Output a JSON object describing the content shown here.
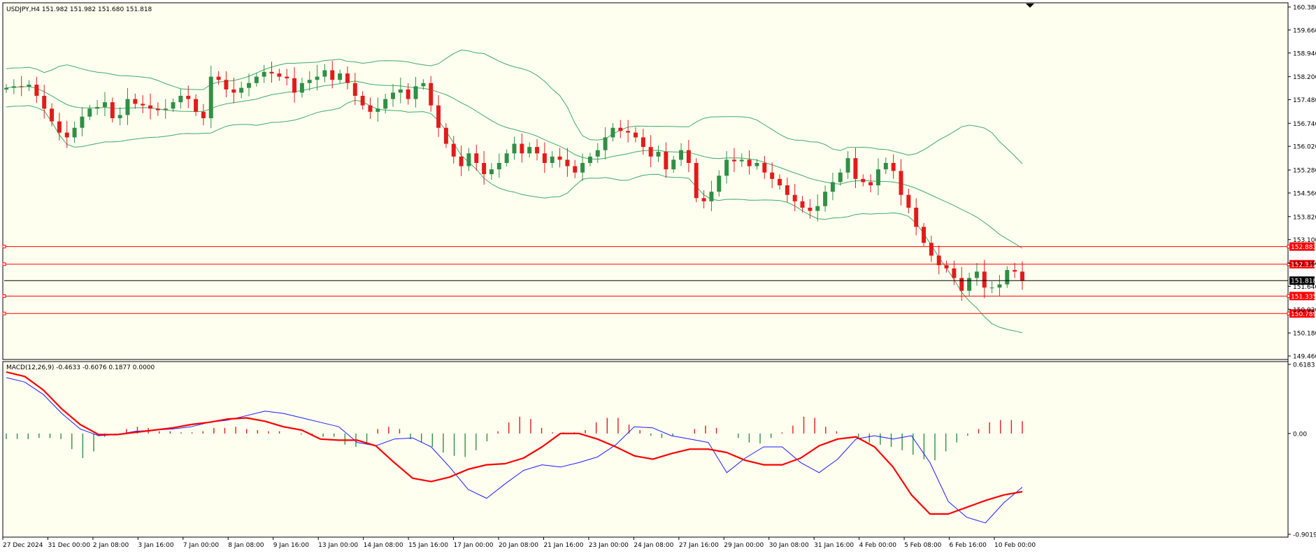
{
  "header": {
    "symbol_line": "USDJPY,H4  151.982 151.982 151.680 151.818",
    "macd_line": "MACD(12,26,9) -0.4633 -0.6076 0.1877 0.0000"
  },
  "colors": {
    "background": "#fffff0",
    "bull": "#2f8f46",
    "bear": "#e21b1b",
    "bands": "#3daa6a",
    "level_line": "#ff0000",
    "macd_main": "#1a1aff",
    "macd_signal": "#ff0000",
    "hist_positive": "#e21b1b",
    "hist_negative": "#2f8f46"
  },
  "chart_data": [
    {
      "type": "candlestick",
      "ylim": [
        149.46,
        160.38
      ],
      "price_ticks": [
        "160.380",
        "159.660",
        "158.940",
        "158.200",
        "157.480",
        "156.740",
        "156.020",
        "155.280",
        "154.560",
        "153.820",
        "153.100",
        "152.360",
        "151.640",
        "150.920",
        "150.180",
        "149.460"
      ],
      "current_price": "151.818",
      "levels": [
        "152.883",
        "152.332",
        "151.335",
        "150.789"
      ],
      "x_labels": [
        "27 Dec 2024",
        "31 Dec 00:00",
        "2 Jan 08:00",
        "3 Jan 16:00",
        "7 Jan 00:00",
        "8 Jan 08:00",
        "9 Jan 16:00",
        "13 Jan 00:00",
        "14 Jan 08:00",
        "15 Jan 16:00",
        "17 Jan 00:00",
        "20 Jan 08:00",
        "21 Jan 16:00",
        "23 Jan 00:00",
        "24 Jan 08:00",
        "27 Jan 16:00",
        "29 Jan 00:00",
        "30 Jan 08:00",
        "31 Jan 16:00",
        "4 Feb 00:00",
        "5 Feb 08:00",
        "6 Feb 16:00",
        "10 Feb 00:00"
      ],
      "close_path": [
        157.85,
        157.9,
        157.88,
        157.95,
        157.6,
        157.2,
        156.8,
        156.45,
        156.3,
        156.6,
        156.95,
        157.2,
        157.25,
        157.4,
        156.9,
        157.0,
        157.5,
        157.35,
        157.3,
        157.2,
        157.15,
        157.2,
        157.4,
        157.6,
        157.5,
        157.1,
        156.9,
        158.2,
        158.1,
        157.8,
        157.7,
        157.85,
        158.0,
        158.2,
        158.35,
        158.3,
        158.2,
        158.15,
        157.7,
        158.0,
        158.1,
        158.2,
        158.4,
        158.1,
        158.3,
        158.0,
        157.6,
        157.3,
        157.1,
        157.2,
        157.5,
        157.7,
        157.8,
        157.5,
        157.9,
        158.0,
        157.3,
        156.6,
        156.1,
        155.7,
        155.4,
        155.8,
        155.5,
        155.15,
        155.3,
        155.5,
        155.8,
        156.1,
        155.8,
        156.0,
        155.8,
        155.5,
        155.7,
        155.6,
        155.4,
        155.2,
        155.5,
        155.7,
        155.9,
        156.3,
        156.6,
        156.5,
        156.45,
        156.3,
        156.0,
        155.7,
        155.85,
        155.3,
        155.6,
        155.9,
        155.5,
        154.4,
        154.3,
        154.6,
        155.1,
        155.6,
        155.55,
        155.6,
        155.4,
        155.5,
        155.2,
        155.0,
        154.8,
        154.5,
        154.3,
        154.1,
        154.0,
        154.15,
        154.6,
        154.9,
        155.2,
        155.65,
        155.0,
        154.9,
        154.8,
        155.3,
        155.5,
        155.25,
        154.5,
        154.1,
        153.5,
        153.0,
        152.6,
        152.3,
        152.2,
        151.9,
        151.5,
        151.9,
        152.1,
        151.6,
        151.6,
        151.7,
        152.15,
        152.1,
        151.82
      ]
    },
    {
      "type": "macd",
      "ylim": [
        -0.9019,
        0.6183
      ],
      "ticks": [
        "0.6183",
        "0.00",
        "-0.9019"
      ],
      "main": [
        0.5,
        0.46,
        0.35,
        0.18,
        0.04,
        -0.02,
        -0.01,
        0.02,
        0.03,
        0.04,
        0.06,
        0.1,
        0.12,
        0.16,
        0.2,
        0.18,
        0.14,
        0.1,
        0.06,
        -0.08,
        -0.11,
        -0.05,
        -0.04,
        -0.12,
        -0.3,
        -0.5,
        -0.58,
        -0.45,
        -0.33,
        -0.28,
        -0.3,
        -0.26,
        -0.21,
        -0.1,
        0.06,
        0.05,
        -0.02,
        -0.05,
        -0.08,
        -0.35,
        -0.22,
        -0.12,
        -0.12,
        -0.26,
        -0.35,
        -0.23,
        -0.05,
        -0.02,
        -0.05,
        -0.02,
        -0.26,
        -0.61,
        -0.75,
        -0.8,
        -0.62,
        -0.48
      ],
      "signal": [
        0.55,
        0.51,
        0.39,
        0.22,
        0.08,
        -0.01,
        -0.01,
        0.01,
        0.03,
        0.05,
        0.08,
        0.1,
        0.13,
        0.14,
        0.11,
        0.06,
        0.03,
        -0.05,
        -0.06,
        -0.06,
        -0.11,
        -0.26,
        -0.4,
        -0.43,
        -0.39,
        -0.32,
        -0.28,
        -0.27,
        -0.22,
        -0.12,
        0.0,
        0.0,
        -0.05,
        -0.12,
        -0.2,
        -0.23,
        -0.18,
        -0.14,
        -0.14,
        -0.17,
        -0.24,
        -0.28,
        -0.28,
        -0.22,
        -0.11,
        -0.05,
        -0.03,
        -0.12,
        -0.3,
        -0.55,
        -0.72,
        -0.72,
        -0.66,
        -0.6,
        -0.55,
        -0.52
      ],
      "histogram": [
        -0.05,
        -0.05,
        -0.05,
        -0.04,
        -0.04,
        -0.05,
        -0.14,
        -0.22,
        -0.16,
        -0.03,
        -0.01,
        0.04,
        0.06,
        0.05,
        0.02,
        0.02,
        0.01,
        0.01,
        0.02,
        0.05,
        0.05,
        0.06,
        0.04,
        0.03,
        0.02,
        0.02,
        0.0,
        -0.01,
        -0.02,
        -0.03,
        -0.03,
        -0.1,
        -0.12,
        -0.09,
        0.04,
        0.06,
        0.04,
        -0.05,
        -0.08,
        -0.12,
        -0.17,
        -0.2,
        -0.21,
        -0.15,
        -0.07,
        0.02,
        0.1,
        0.15,
        0.13,
        0.05,
        0.01,
        0.01,
        0.01,
        0.03,
        0.1,
        0.14,
        0.14,
        0.08,
        0.03,
        -0.02,
        -0.04,
        -0.02,
        0.0,
        0.04,
        0.07,
        0.05,
        0.0,
        -0.04,
        -0.08,
        -0.09,
        -0.04,
        0.01,
        0.07,
        0.15,
        0.14,
        0.06,
        0.02,
        0.0,
        -0.05,
        -0.08,
        -0.1,
        -0.12,
        -0.15,
        -0.19,
        -0.23,
        -0.24,
        -0.16,
        -0.08,
        -0.02,
        0.04,
        0.1,
        0.12,
        0.12,
        0.11
      ]
    }
  ]
}
